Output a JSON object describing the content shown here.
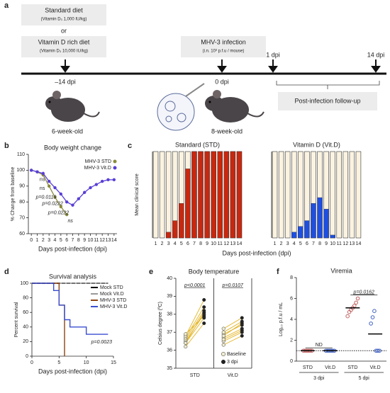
{
  "diagram": {
    "panel": "a",
    "diet_standard": "Standard diet",
    "diet_standard_dose": "(Vitamin D₃ 1,000 IU/kg)",
    "or": "or",
    "diet_vitd": "Vitamin D rich diet",
    "diet_vitd_dose": "(Vitamin D₃ 10,000 IU/kg)",
    "start": "–14 dpi",
    "age_start": "6-week-old",
    "infection": "MHV-3 infection",
    "infection_dose": "(i.n. 10³ p.f.u / mouse)",
    "infection_day": "0 dpi",
    "age_infection": "8-week-old",
    "follow_start": "1 dpi",
    "follow_end": "14 dpi",
    "follow_up": "Post-infection follow-up"
  },
  "chart_data": [
    {
      "type": "line",
      "panel": "b",
      "title": "Body weight change",
      "xlabel": "Days post-infection (dpi)",
      "ylabel": "% Change from baseline",
      "x": [
        0,
        1,
        2,
        3,
        4,
        5,
        6,
        7,
        8,
        9,
        10,
        11,
        12,
        13,
        14
      ],
      "xlim": [
        -0.5,
        14.5
      ],
      "xticks": [
        0,
        1,
        2,
        3,
        4,
        5,
        6,
        7,
        8,
        9,
        10,
        11,
        12,
        13,
        14
      ],
      "ylim": [
        60,
        110
      ],
      "yticks": [
        60,
        70,
        80,
        90,
        100,
        110
      ],
      "series": [
        {
          "name": "MHV-3 STD",
          "color": "#8a8a3c",
          "values": [
            100,
            99,
            97,
            90,
            83,
            77,
            72,
            null,
            null,
            null,
            null,
            null,
            null,
            null,
            null
          ]
        },
        {
          "name": "MHV-3 Vit.D",
          "color": "#5a3fd6",
          "values": [
            100,
            99,
            98,
            93,
            89,
            85,
            80,
            78,
            82,
            86,
            89,
            91,
            93,
            94,
            94
          ]
        }
      ],
      "annotations": [
        "ns",
        "ns",
        "p=0.0119",
        "p=0.0222",
        "p=0.0222",
        "ns"
      ]
    },
    {
      "type": "bar",
      "panel": "c",
      "title": "Standard (STD)",
      "ylabel": "Mean clinical score",
      "xlabel": "Days post-infection (dpi)",
      "categories": [
        "1",
        "2",
        "3",
        "4",
        "5",
        "6",
        "7",
        "8",
        "9",
        "10",
        "11",
        "12",
        "13",
        "14"
      ],
      "values": [
        0,
        0,
        1,
        3,
        6,
        12,
        15,
        15,
        15,
        15,
        15,
        15,
        15,
        15
      ],
      "color": "#c8280f",
      "ylim": [
        0,
        15
      ]
    },
    {
      "type": "bar",
      "title": "Vitamin D (Vit.D)",
      "categories": [
        "1",
        "2",
        "3",
        "4",
        "5",
        "6",
        "7",
        "8",
        "9",
        "10",
        "11",
        "12",
        "13",
        "14"
      ],
      "values": [
        0,
        0,
        0,
        1,
        2,
        3,
        6,
        7,
        5,
        0.5,
        0,
        0,
        0,
        0
      ],
      "color": "#1f4fe0",
      "ylim": [
        0,
        15
      ]
    },
    {
      "type": "step",
      "panel": "d",
      "title": "Survival analysis",
      "xlabel": "Days post-infection (dpi)",
      "ylabel": "Percent survival",
      "x": [
        0,
        4,
        5,
        6,
        7,
        10,
        14
      ],
      "xlim": [
        0,
        15
      ],
      "xticks": [
        0,
        5,
        10,
        15
      ],
      "ylim": [
        0,
        100
      ],
      "yticks": [
        0,
        20,
        40,
        60,
        80,
        100
      ],
      "series": [
        {
          "name": "Mock STD",
          "color": "#000000",
          "dashed": true,
          "values": [
            100,
            100,
            100,
            100,
            100,
            100,
            100
          ]
        },
        {
          "name": "Mock Vit.D",
          "color": "#999999",
          "values": [
            100,
            100,
            100,
            100,
            100,
            100,
            100
          ]
        },
        {
          "name": "MHV-3 STD",
          "color": "#8b4513",
          "values": [
            100,
            100,
            70,
            0,
            null,
            null,
            null
          ]
        },
        {
          "name": "MHV-3 Vit.D",
          "color": "#3a4fd0",
          "values": [
            100,
            90,
            70,
            50,
            40,
            30,
            30
          ]
        }
      ],
      "annotations": [
        "p=0.0023"
      ]
    },
    {
      "type": "paired",
      "panel": "e",
      "title": "Body temperature",
      "ylabel": "Celsius degree (ºC)",
      "categories": [
        "STD",
        "Vit.D"
      ],
      "ylim": [
        35,
        40
      ],
      "yticks": [
        35,
        36,
        37,
        38,
        39,
        40
      ],
      "line_color": "#e3b320",
      "series": [
        {
          "name": "Baseline",
          "color": "#f0ecd0",
          "values": [
            [
              36.2,
              36.4,
              36.5,
              36.6,
              36.7,
              36.8,
              36.9,
              36.4
            ],
            [
              36.3,
              36.5,
              36.7,
              36.9,
              37.0,
              37.2,
              36.6,
              36.8
            ]
          ]
        },
        {
          "name": "3 dpi",
          "color": "#222222",
          "values": [
            [
              37.5,
              37.8,
              38.0,
              38.2,
              38.4,
              38.8,
              37.9,
              38.1
            ],
            [
              36.8,
              37.0,
              37.2,
              37.4,
              37.6,
              37.8,
              37.1,
              37.5
            ]
          ]
        }
      ],
      "annotations": [
        "p<0.0001",
        "p=0.0107"
      ]
    },
    {
      "type": "strip",
      "panel": "f",
      "title": "Viremia",
      "ylabel": "Log₁₀ p.f.u / mL",
      "categories": [
        "STD",
        "Vit.D",
        "STD",
        "Vit.D"
      ],
      "groups": [
        "3 dpi",
        "5 dpi"
      ],
      "colors": [
        "#c06060",
        "#4060c0",
        "#c06060",
        "#4060c0"
      ],
      "ylim": [
        0,
        8
      ],
      "yticks": [
        0,
        2,
        4,
        6,
        8
      ],
      "lod": 1,
      "values": [
        [
          1,
          1,
          1,
          1,
          1,
          1
        ],
        [
          1,
          1,
          1,
          1,
          1,
          1
        ],
        [
          4.3,
          4.7,
          4.9,
          5.1,
          5.3,
          5.6,
          6.0
        ],
        [
          3.6,
          4.2,
          4.8,
          1,
          1,
          1
        ]
      ],
      "means": [
        1,
        1,
        5.1,
        2.6
      ],
      "annotations": [
        "ND",
        "p=0.0162"
      ]
    }
  ]
}
